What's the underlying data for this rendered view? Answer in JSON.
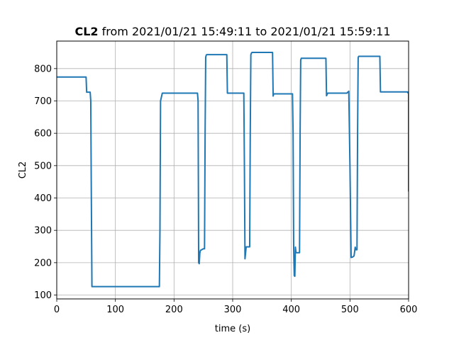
{
  "chart_data": {
    "type": "line",
    "title": {
      "bold": "CL2",
      "rest": " from 2021/01/21 15:49:11 to 2021/01/21 15:59:11"
    },
    "xlabel": "time (s)",
    "ylabel": "CL2",
    "xlim": [
      0,
      600
    ],
    "ylim": [
      88,
      885
    ],
    "xticks": [
      0,
      100,
      200,
      300,
      400,
      500,
      600
    ],
    "yticks": [
      100,
      200,
      300,
      400,
      500,
      600,
      700,
      800
    ],
    "grid": true,
    "legend": "none",
    "line_color": "#1f77b4",
    "series": [
      {
        "x": [
          0,
          50,
          51,
          55,
          57,
          58,
          59,
          60,
          175,
          176,
          177,
          180,
          240,
          241,
          242,
          243,
          244,
          245,
          250,
          251,
          252,
          253,
          254,
          255,
          256,
          257,
          258,
          260,
          290,
          291,
          292,
          294,
          318,
          319,
          320,
          321,
          322,
          323,
          325,
          326,
          328,
          329,
          330,
          331,
          332,
          333,
          334,
          336,
          340,
          368,
          369,
          370,
          372,
          400,
          401,
          402,
          403,
          404,
          405,
          406,
          407,
          408,
          409,
          410,
          414,
          415,
          416,
          417,
          418,
          420,
          458,
          459,
          460,
          462,
          495,
          496,
          497,
          498,
          500,
          502,
          505,
          507,
          509,
          510,
          511,
          512,
          513,
          514,
          515,
          517,
          520,
          550,
          551,
          552,
          554,
          597,
          598,
          599,
          600,
          600
        ],
        "values": [
          774,
          774,
          727,
          727,
          727,
          700,
          400,
          126,
          126,
          300,
          700,
          724,
          724,
          700,
          200,
          197,
          230,
          238,
          243,
          243,
          243,
          600,
          835,
          842,
          843,
          843,
          843,
          843,
          843,
          724,
          724,
          724,
          724,
          724,
          500,
          212,
          230,
          249,
          249,
          249,
          249,
          249,
          600,
          843,
          848,
          850,
          850,
          850,
          850,
          850,
          715,
          722,
          722,
          722,
          722,
          722,
          600,
          250,
          160,
          158,
          248,
          231,
          231,
          231,
          231,
          600,
          826,
          832,
          832,
          832,
          832,
          832,
          716,
          724,
          724,
          727,
          727,
          730,
          500,
          216,
          218,
          221,
          248,
          240,
          240,
          240,
          600,
          834,
          838,
          838,
          838,
          838,
          838,
          728,
          728,
          728,
          728,
          725,
          728,
          420
        ]
      }
    ]
  }
}
